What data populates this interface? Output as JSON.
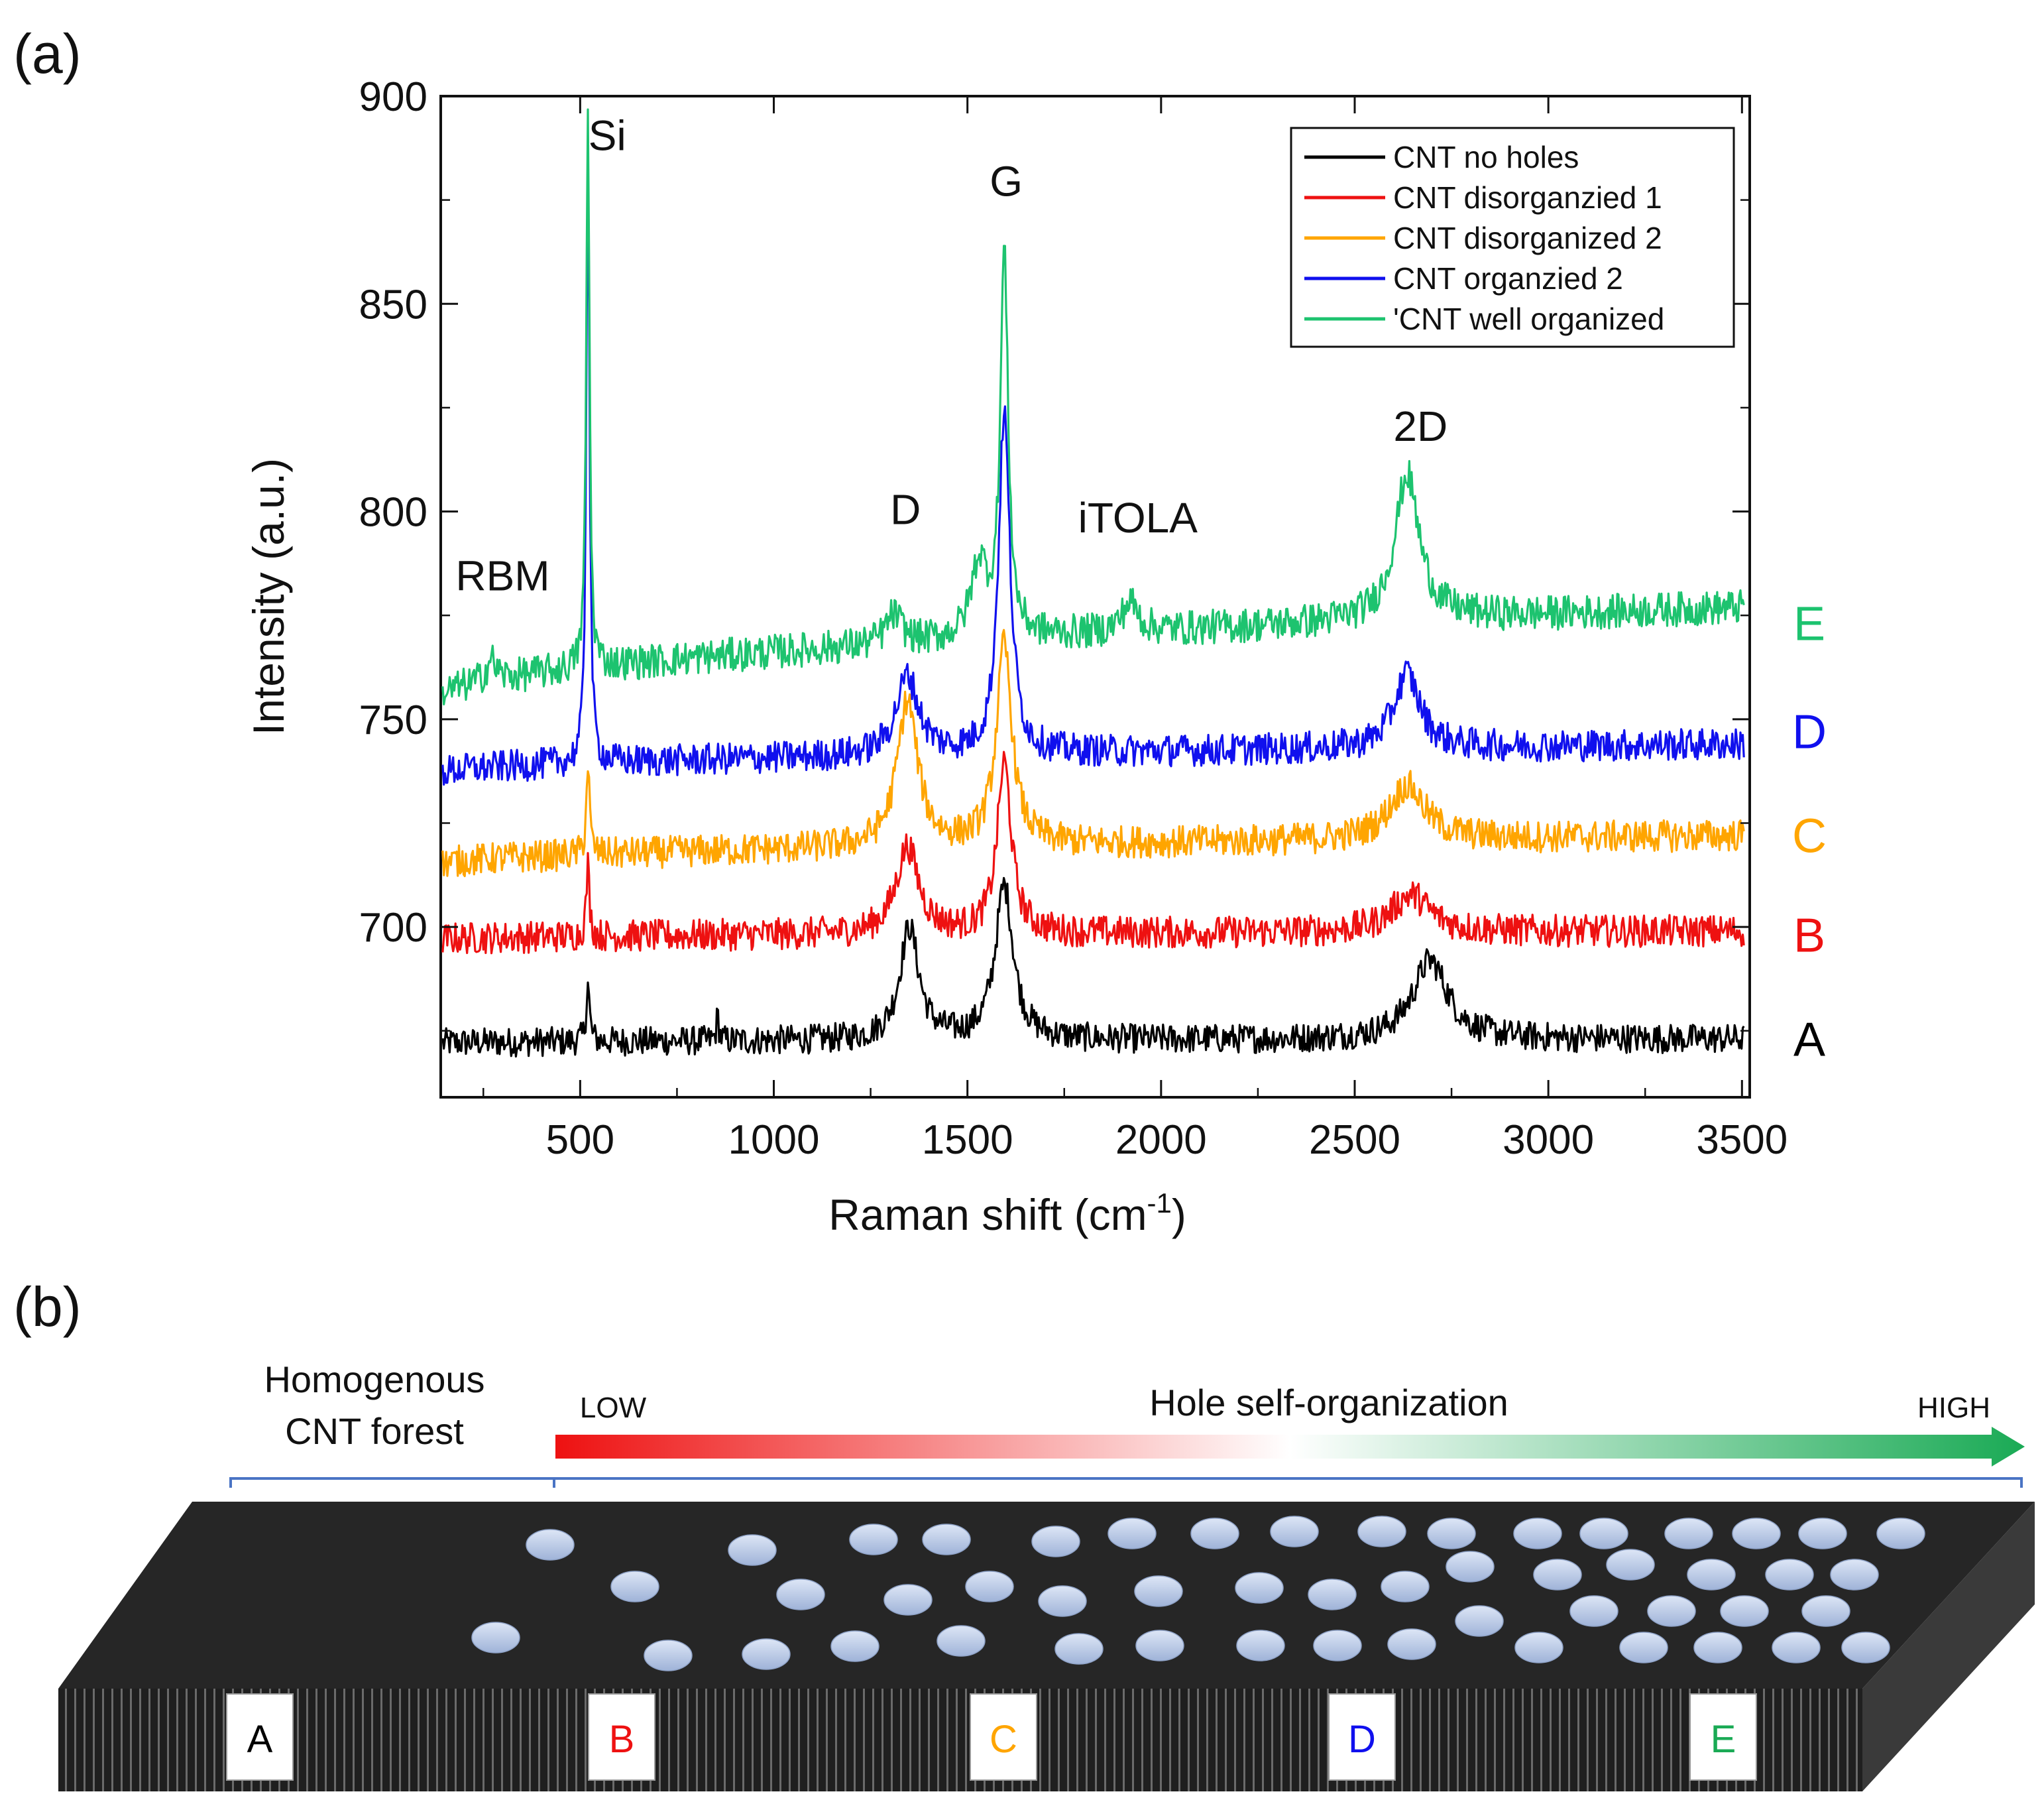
{
  "panel_a_label": "(a)",
  "panel_b_label": "(b)",
  "chart_data": {
    "type": "line",
    "title": "",
    "xlabel": "Raman shift (cm",
    "xlabel_sup": "-1",
    "xlabel_close": ")",
    "ylabel": "Intensity (a.u.)",
    "xlim": [
      140,
      3520
    ],
    "ylim": [
      659,
      900
    ],
    "x_ticks": [
      500,
      1000,
      1500,
      2000,
      2500,
      3000,
      3500
    ],
    "y_ticks": [
      700,
      750,
      800,
      850,
      900
    ],
    "grid": false,
    "legend_position": "top-right",
    "peak_labels": [
      {
        "text": "RBM",
        "x": 300,
        "y": 781
      },
      {
        "text": "Si",
        "x": 570,
        "y": 887
      },
      {
        "text": "D",
        "x": 1340,
        "y": 797
      },
      {
        "text": "G",
        "x": 1600,
        "y": 876
      },
      {
        "text": "iTOLA",
        "x": 1940,
        "y": 795
      },
      {
        "text": "2D",
        "x": 2670,
        "y": 817
      }
    ],
    "series": [
      {
        "name": "CNT no holes",
        "letter": "A",
        "color": "#000000",
        "baseline_start": 672,
        "baseline_end": 673,
        "noise": 2.2,
        "label_y": 673,
        "peaks": [
          {
            "x": 520,
            "h": 14,
            "w": 5
          },
          {
            "x": 855,
            "h": 6,
            "w": 4
          },
          {
            "x": 1350,
            "h": 27,
            "w": 30
          },
          {
            "x": 1595,
            "h": 37,
            "w": 28
          },
          {
            "x": 2695,
            "h": 19,
            "w": 55
          }
        ]
      },
      {
        "name": "CNT disorganzied 1",
        "letter": "B",
        "color": "#ee1111",
        "baseline_start": 697,
        "baseline_end": 699,
        "noise": 2.4,
        "label_y": 698,
        "peaks": [
          {
            "x": 520,
            "h": 17,
            "w": 5
          },
          {
            "x": 1345,
            "h": 21,
            "w": 35
          },
          {
            "x": 1595,
            "h": 41,
            "w": 22
          },
          {
            "x": 2645,
            "h": 9,
            "w": 60
          }
        ]
      },
      {
        "name": "CNT disorganized 2",
        "letter": "C",
        "color": "#ffa500",
        "baseline_start": 715,
        "baseline_end": 722,
        "noise": 2.4,
        "label_y": 722,
        "peaks": [
          {
            "x": 520,
            "h": 22,
            "w": 5
          },
          {
            "x": 1345,
            "h": 35,
            "w": 32
          },
          {
            "x": 1595,
            "h": 48,
            "w": 24
          },
          {
            "x": 2635,
            "h": 13,
            "w": 55
          }
        ]
      },
      {
        "name": "CNT organzied 2",
        "letter": "D",
        "color": "#1010ee",
        "baseline_start": 737,
        "baseline_end": 744,
        "noise": 2.4,
        "label_y": 747,
        "peaks": [
          {
            "x": 520,
            "h": 150,
            "w": 5
          },
          {
            "x": 1345,
            "h": 19,
            "w": 35
          },
          {
            "x": 1595,
            "h": 82,
            "w": 18
          },
          {
            "x": 2635,
            "h": 18,
            "w": 40
          }
        ]
      },
      {
        "name": "'CNT well organized",
        "letter": "E",
        "color": "#1dc36f",
        "baseline_start": 755,
        "baseline_end": 777,
        "noise": 2.6,
        "label_y": 773,
        "peaks": [
          {
            "x": 270,
            "h": 5,
            "w": 15
          },
          {
            "x": 520,
            "h": 135,
            "w": 5
          },
          {
            "x": 1310,
            "h": 7,
            "w": 25
          },
          {
            "x": 1530,
            "h": 18,
            "w": 25
          },
          {
            "x": 1595,
            "h": 92,
            "w": 12
          },
          {
            "x": 1920,
            "h": 7,
            "w": 25
          },
          {
            "x": 2635,
            "h": 35,
            "w": 38
          }
        ]
      }
    ]
  },
  "diagram": {
    "left_label_line1": "Homogenous",
    "left_label_line2": "CNT forest",
    "gradient_title": "Hole self-organization",
    "low_label": "LOW",
    "high_label": "HIGH",
    "gradient_colors": [
      "#ee1111",
      "#ffffff",
      "#1aaa55"
    ],
    "box_letters": [
      {
        "letter": "A",
        "color": "#000000"
      },
      {
        "letter": "B",
        "color": "#ee1111"
      },
      {
        "letter": "C",
        "color": "#ffa500"
      },
      {
        "letter": "D",
        "color": "#1010ee"
      },
      {
        "letter": "E",
        "color": "#1aaa55"
      }
    ]
  }
}
